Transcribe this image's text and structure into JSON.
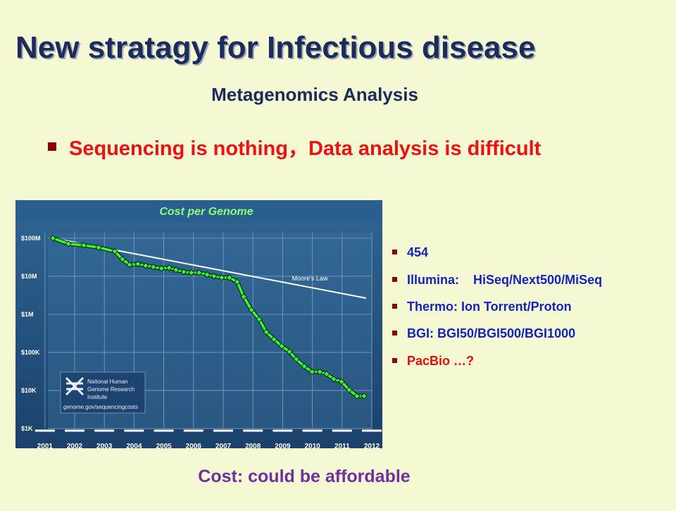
{
  "title": "New stratagy for Infectious disease",
  "subtitle": "Metagenomics Analysis",
  "bullet": "Sequencing is nothing，Data analysis is difficult",
  "list": [
    "454",
    "Illumina:    HiSeq/Next500/MiSeq",
    "Thermo: Ion Torrent/Proton",
    "BGI: BGI50/BGI500/BGI1000",
    "PacBio …?"
  ],
  "caption": "Cost: could be affordable",
  "chart_data": {
    "type": "line",
    "title": "Cost per Genome",
    "log_y": true,
    "grid": true,
    "annotations": [
      "National Human",
      "Genome Research",
      "Institute",
      "genome.gov/sequencingcosts"
    ],
    "xlim": [
      2001.1,
      2012.0
    ],
    "xticks": [
      2001,
      2002,
      2003,
      2004,
      2005,
      2006,
      2007,
      2008,
      2009,
      2010,
      2011,
      2012
    ],
    "ylim": [
      1000,
      140000000
    ],
    "yticks": [
      {
        "value": 100000000,
        "label": "$100M"
      },
      {
        "value": 10000000,
        "label": "$10M"
      },
      {
        "value": 1000000,
        "label": "$1M"
      },
      {
        "value": 100000,
        "label": "$100K"
      },
      {
        "value": 10000,
        "label": "$10K"
      },
      {
        "value": 1000,
        "label": "$1K"
      }
    ],
    "series": [
      {
        "color": "#33ff33",
        "x": [
          2001.27,
          2001.79,
          2002.31,
          2002.81,
          2003.35,
          2003.61,
          2003.85,
          2004.13,
          2004.39,
          2004.65,
          2004.92,
          2005.18,
          2005.41,
          2005.67,
          2005.93,
          2006.19,
          2006.46,
          2006.69,
          2006.95,
          2007.21,
          2007.47,
          2007.69,
          2007.95,
          2008.21,
          2008.45,
          2008.71,
          2008.97,
          2009.23,
          2009.46,
          2009.73,
          2009.99,
          2010.25,
          2010.48,
          2010.72,
          2010.98,
          2011.24,
          2011.5,
          2011.74
        ],
        "values": [
          100000000,
          71000000,
          65000000,
          57000000,
          45000000,
          28000000,
          20000000,
          21000000,
          19000000,
          17500000,
          16000000,
          16700000,
          14700000,
          13000000,
          12400000,
          12400000,
          11000000,
          10000000,
          9200000,
          9200000,
          7100000,
          2900000,
          1300000,
          740000,
          340000,
          220000,
          146000,
          104000,
          66000,
          43000,
          31000,
          31000,
          27000,
          20000,
          17000,
          10400,
          7100,
          7100
        ]
      },
      {
        "name": "Moore's Law",
        "color": "#ffffff",
        "x": [
          2001.27,
          2011.81
        ],
        "values": [
          100000000,
          2660000
        ]
      }
    ]
  }
}
